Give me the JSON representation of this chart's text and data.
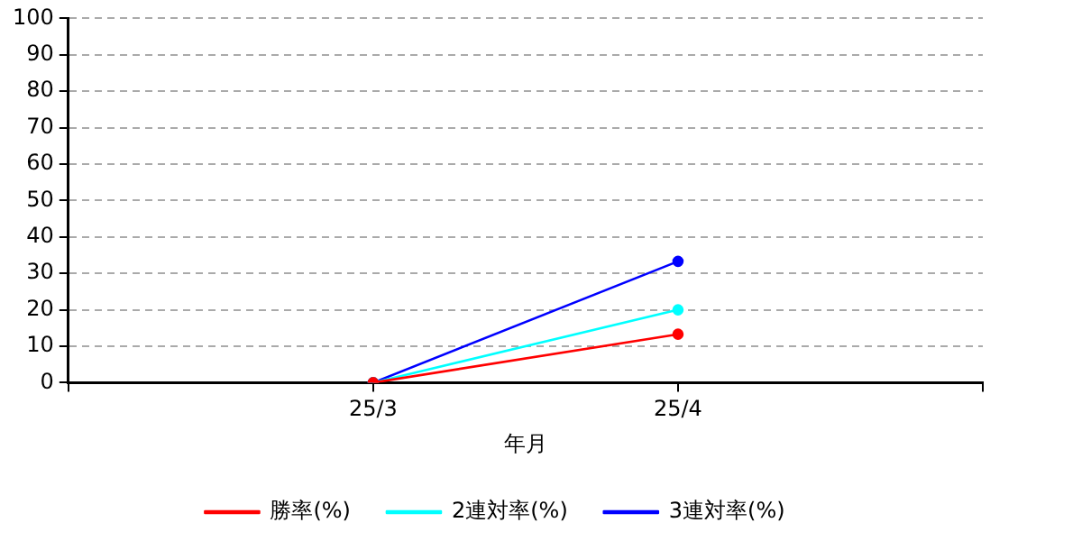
{
  "chart_data": {
    "type": "line",
    "xlabel": "年月",
    "categories": [
      "25/3",
      "25/4"
    ],
    "series": [
      {
        "name": "勝率(%)",
        "color": "#ff0000",
        "values": [
          0,
          13.3
        ]
      },
      {
        "name": "2連対率(%)",
        "color": "#00ffff",
        "values": [
          0,
          20
        ]
      },
      {
        "name": "3連対率(%)",
        "color": "#0000ff",
        "values": [
          0,
          33.3
        ]
      }
    ],
    "ylim": [
      0,
      100
    ],
    "yticks": [
      0,
      10,
      20,
      30,
      40,
      50,
      60,
      70,
      80,
      90,
      100
    ],
    "grid": "y",
    "legend": "bottom",
    "marker": "circle",
    "line_style": "solid"
  }
}
